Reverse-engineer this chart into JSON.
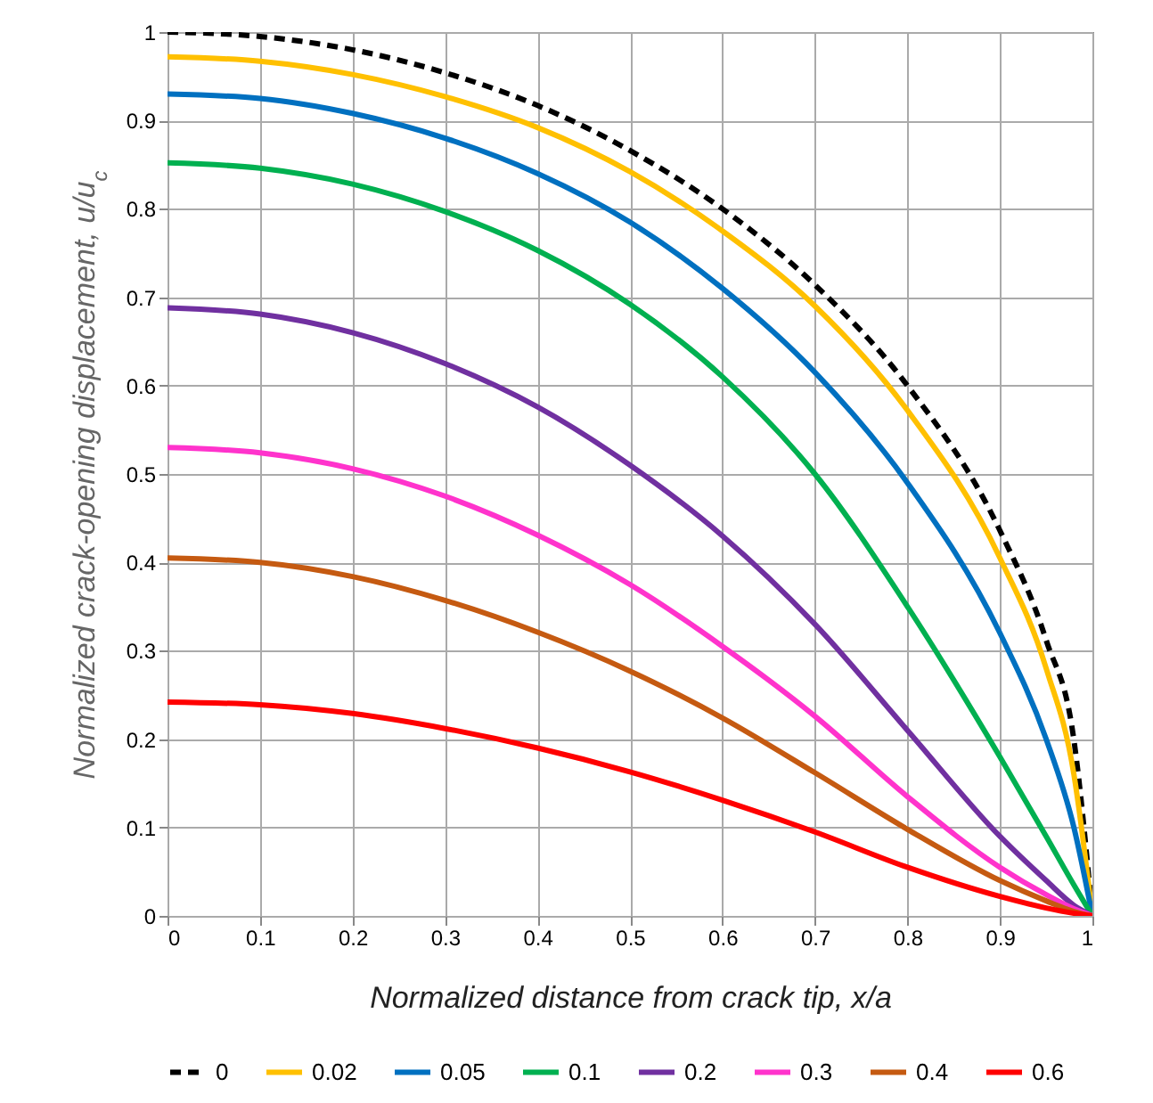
{
  "chart_data": {
    "type": "line",
    "xlabel": "Normalized distance from crack tip, x/a",
    "ylabel": "Normalized crack-opening displacement, u/u$_{c}$",
    "x": [
      0,
      0.1,
      0.2,
      0.3,
      0.4,
      0.5,
      0.6,
      0.7,
      0.8,
      0.9,
      0.95,
      0.98,
      1
    ],
    "series": [
      {
        "name": "0",
        "color": "#000000",
        "line_style": "dashed",
        "values": [
          1,
          0.995,
          0.98,
          0.954,
          0.917,
          0.866,
          0.8,
          0.714,
          0.6,
          0.436,
          0.312,
          0.199,
          0
        ]
      },
      {
        "name": "0.02",
        "color": "#ffc000",
        "values": [
          0.972,
          0.967,
          0.952,
          0.927,
          0.892,
          0.842,
          0.775,
          0.69,
          0.572,
          0.405,
          0.28,
          0.16,
          0
        ]
      },
      {
        "name": "0.05",
        "color": "#0070c0",
        "values": [
          0.93,
          0.925,
          0.908,
          0.88,
          0.84,
          0.785,
          0.71,
          0.615,
          0.49,
          0.32,
          0.2,
          0.1,
          0
        ]
      },
      {
        "name": "0.1",
        "color": "#00b050",
        "values": [
          0.852,
          0.846,
          0.828,
          0.797,
          0.753,
          0.692,
          0.61,
          0.5,
          0.35,
          0.18,
          0.09,
          0.035,
          0
        ]
      },
      {
        "name": "0.2",
        "color": "#7030a0",
        "values": [
          0.688,
          0.681,
          0.66,
          0.625,
          0.576,
          0.51,
          0.43,
          0.33,
          0.21,
          0.09,
          0.04,
          0.012,
          0
        ]
      },
      {
        "name": "0.3",
        "color": "#ff33cc",
        "values": [
          0.53,
          0.524,
          0.506,
          0.475,
          0.431,
          0.375,
          0.305,
          0.226,
          0.135,
          0.055,
          0.024,
          0.008,
          0
        ]
      },
      {
        "name": "0.4",
        "color": "#c55a11",
        "values": [
          0.405,
          0.4,
          0.384,
          0.357,
          0.321,
          0.277,
          0.224,
          0.162,
          0.098,
          0.04,
          0.017,
          0.005,
          0
        ]
      },
      {
        "name": "0.6",
        "color": "#ff0000",
        "values": [
          0.242,
          0.239,
          0.229,
          0.212,
          0.19,
          0.163,
          0.131,
          0.095,
          0.055,
          0.022,
          0.009,
          0.003,
          0
        ]
      }
    ],
    "xlim": [
      0,
      1
    ],
    "xticks": [
      0,
      0.1,
      0.2,
      0.3,
      0.4,
      0.5,
      0.6,
      0.7,
      0.8,
      0.9,
      1
    ],
    "ylim": [
      0,
      1
    ],
    "yticks": [
      0,
      0.1,
      0.2,
      0.3,
      0.4,
      0.5,
      0.6,
      0.7,
      0.8,
      0.9,
      1
    ],
    "grid": true,
    "legend": "bottom",
    "line_style": "solid"
  }
}
